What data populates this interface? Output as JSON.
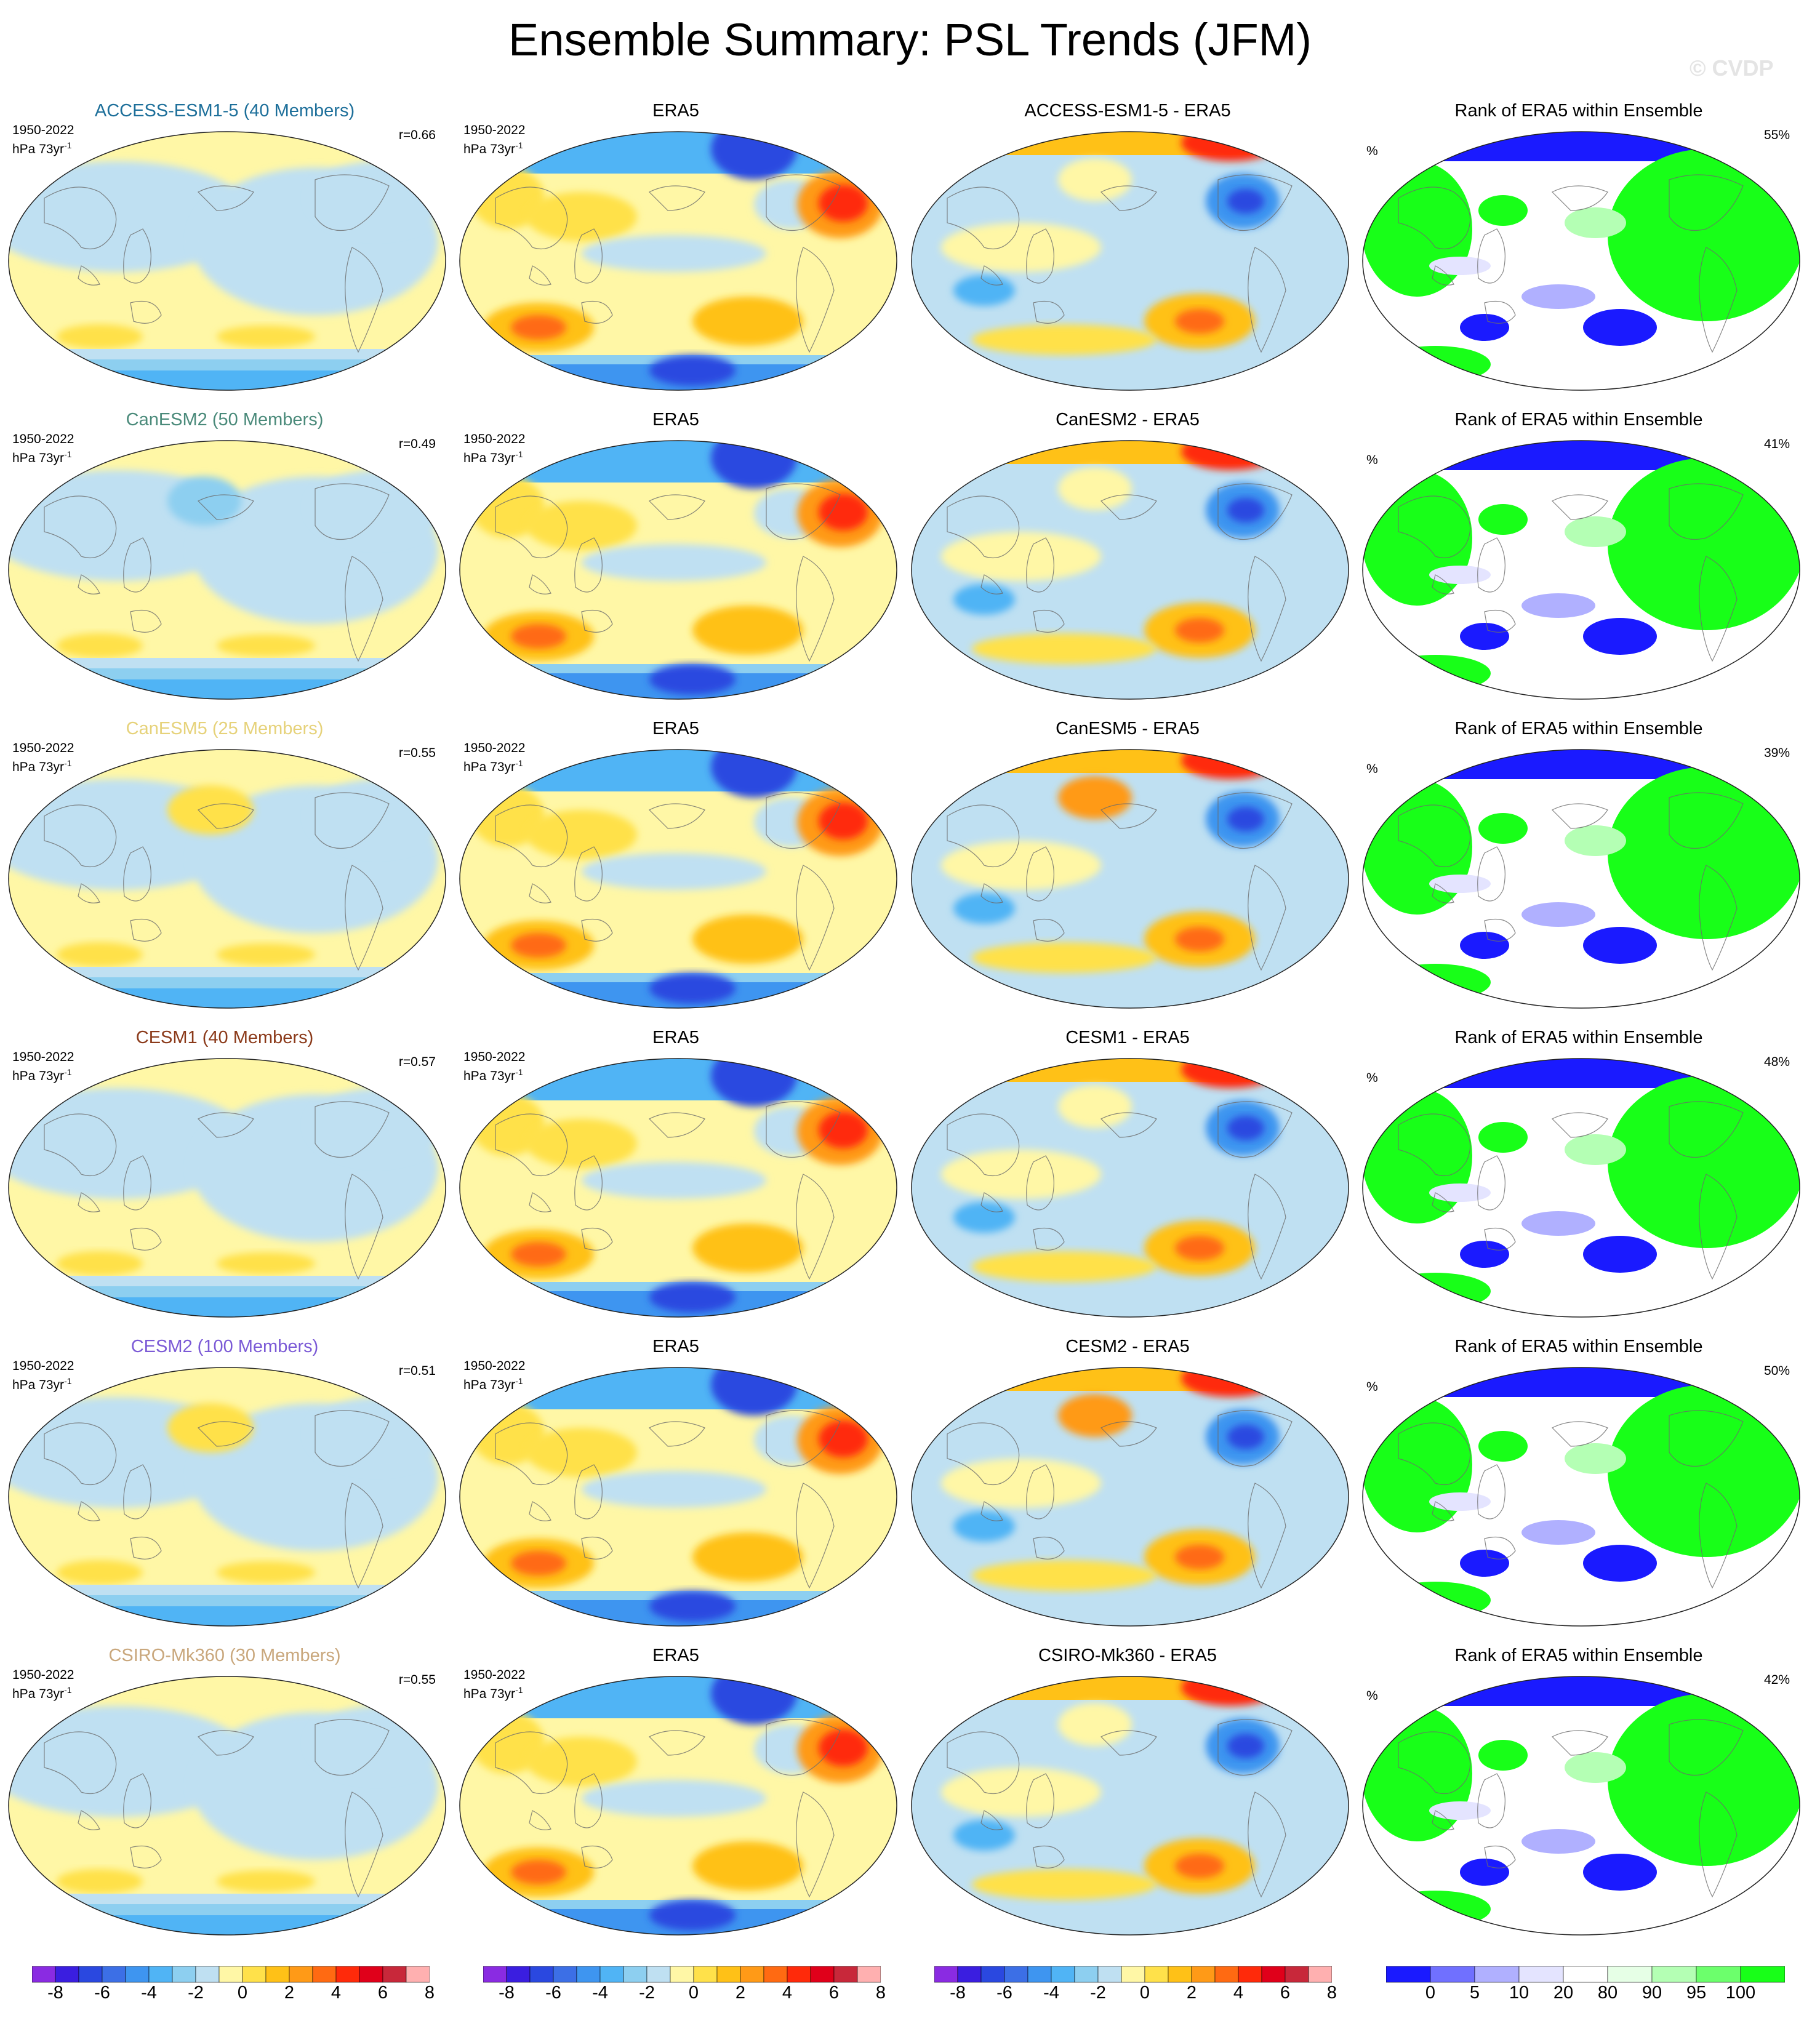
{
  "title": "Ensemble Summary: PSL Trends (JFM)",
  "watermark": "© CVDP",
  "period_label": "1950-2022",
  "units_label": "hPa 73yr",
  "units_exponent": "-1",
  "percent_symbol": "%",
  "era5_title": "ERA5",
  "rank_title": "Rank of ERA5 within Ensemble",
  "rows": [
    {
      "model_title": "ACCESS-ESM1-5 (40 Members)",
      "model_color": "#1d6f9a",
      "r_value": "r=0.66",
      "diff_title": "ACCESS-ESM1-5 - ERA5",
      "rank_pct": "55%"
    },
    {
      "model_title": "CanESM2 (50 Members)",
      "model_color": "#4a8a7a",
      "r_value": "r=0.49",
      "diff_title": "CanESM2 - ERA5",
      "rank_pct": "41%"
    },
    {
      "model_title": "CanESM5 (25 Members)",
      "model_color": "#e6d27a",
      "r_value": "r=0.55",
      "diff_title": "CanESM5 - ERA5",
      "rank_pct": "39%"
    },
    {
      "model_title": "CESM1 (40 Members)",
      "model_color": "#8b3a1a",
      "r_value": "r=0.57",
      "diff_title": "CESM1 - ERA5",
      "rank_pct": "48%"
    },
    {
      "model_title": "CESM2 (100 Members)",
      "model_color": "#7b5ad6",
      "r_value": "r=0.51",
      "diff_title": "CESM2 - ERA5",
      "rank_pct": "50%"
    },
    {
      "model_title": "CSIRO-Mk360 (30 Members)",
      "model_color": "#c9a77c",
      "r_value": "r=0.55",
      "diff_title": "CSIRO-Mk360 - ERA5",
      "rank_pct": "42%"
    }
  ],
  "colorbar_psl": {
    "labels": [
      "-8",
      "-6",
      "-4",
      "-2",
      "0",
      "2",
      "4",
      "6",
      "8"
    ],
    "colors": [
      "#8a2be2",
      "#3a1ee0",
      "#2a48e0",
      "#3c6fe6",
      "#3e95f0",
      "#50b4f5",
      "#8dcff0",
      "#bfe0f2",
      "#fff7a6",
      "#ffe14a",
      "#ffc117",
      "#ff9a17",
      "#ff6a12",
      "#ff2a0a",
      "#e0001a",
      "#c8283a",
      "#ffb0b0"
    ]
  },
  "colorbar_rank": {
    "labels": [
      "0",
      "5",
      "10",
      "20",
      "80",
      "90",
      "95",
      "100"
    ],
    "colors": [
      "#1a1aff",
      "#7070ff",
      "#b0b0ff",
      "#e4e4ff",
      "#ffffff",
      "#e6ffe6",
      "#b4ffb4",
      "#6cff6c",
      "#18ff18"
    ]
  }
}
